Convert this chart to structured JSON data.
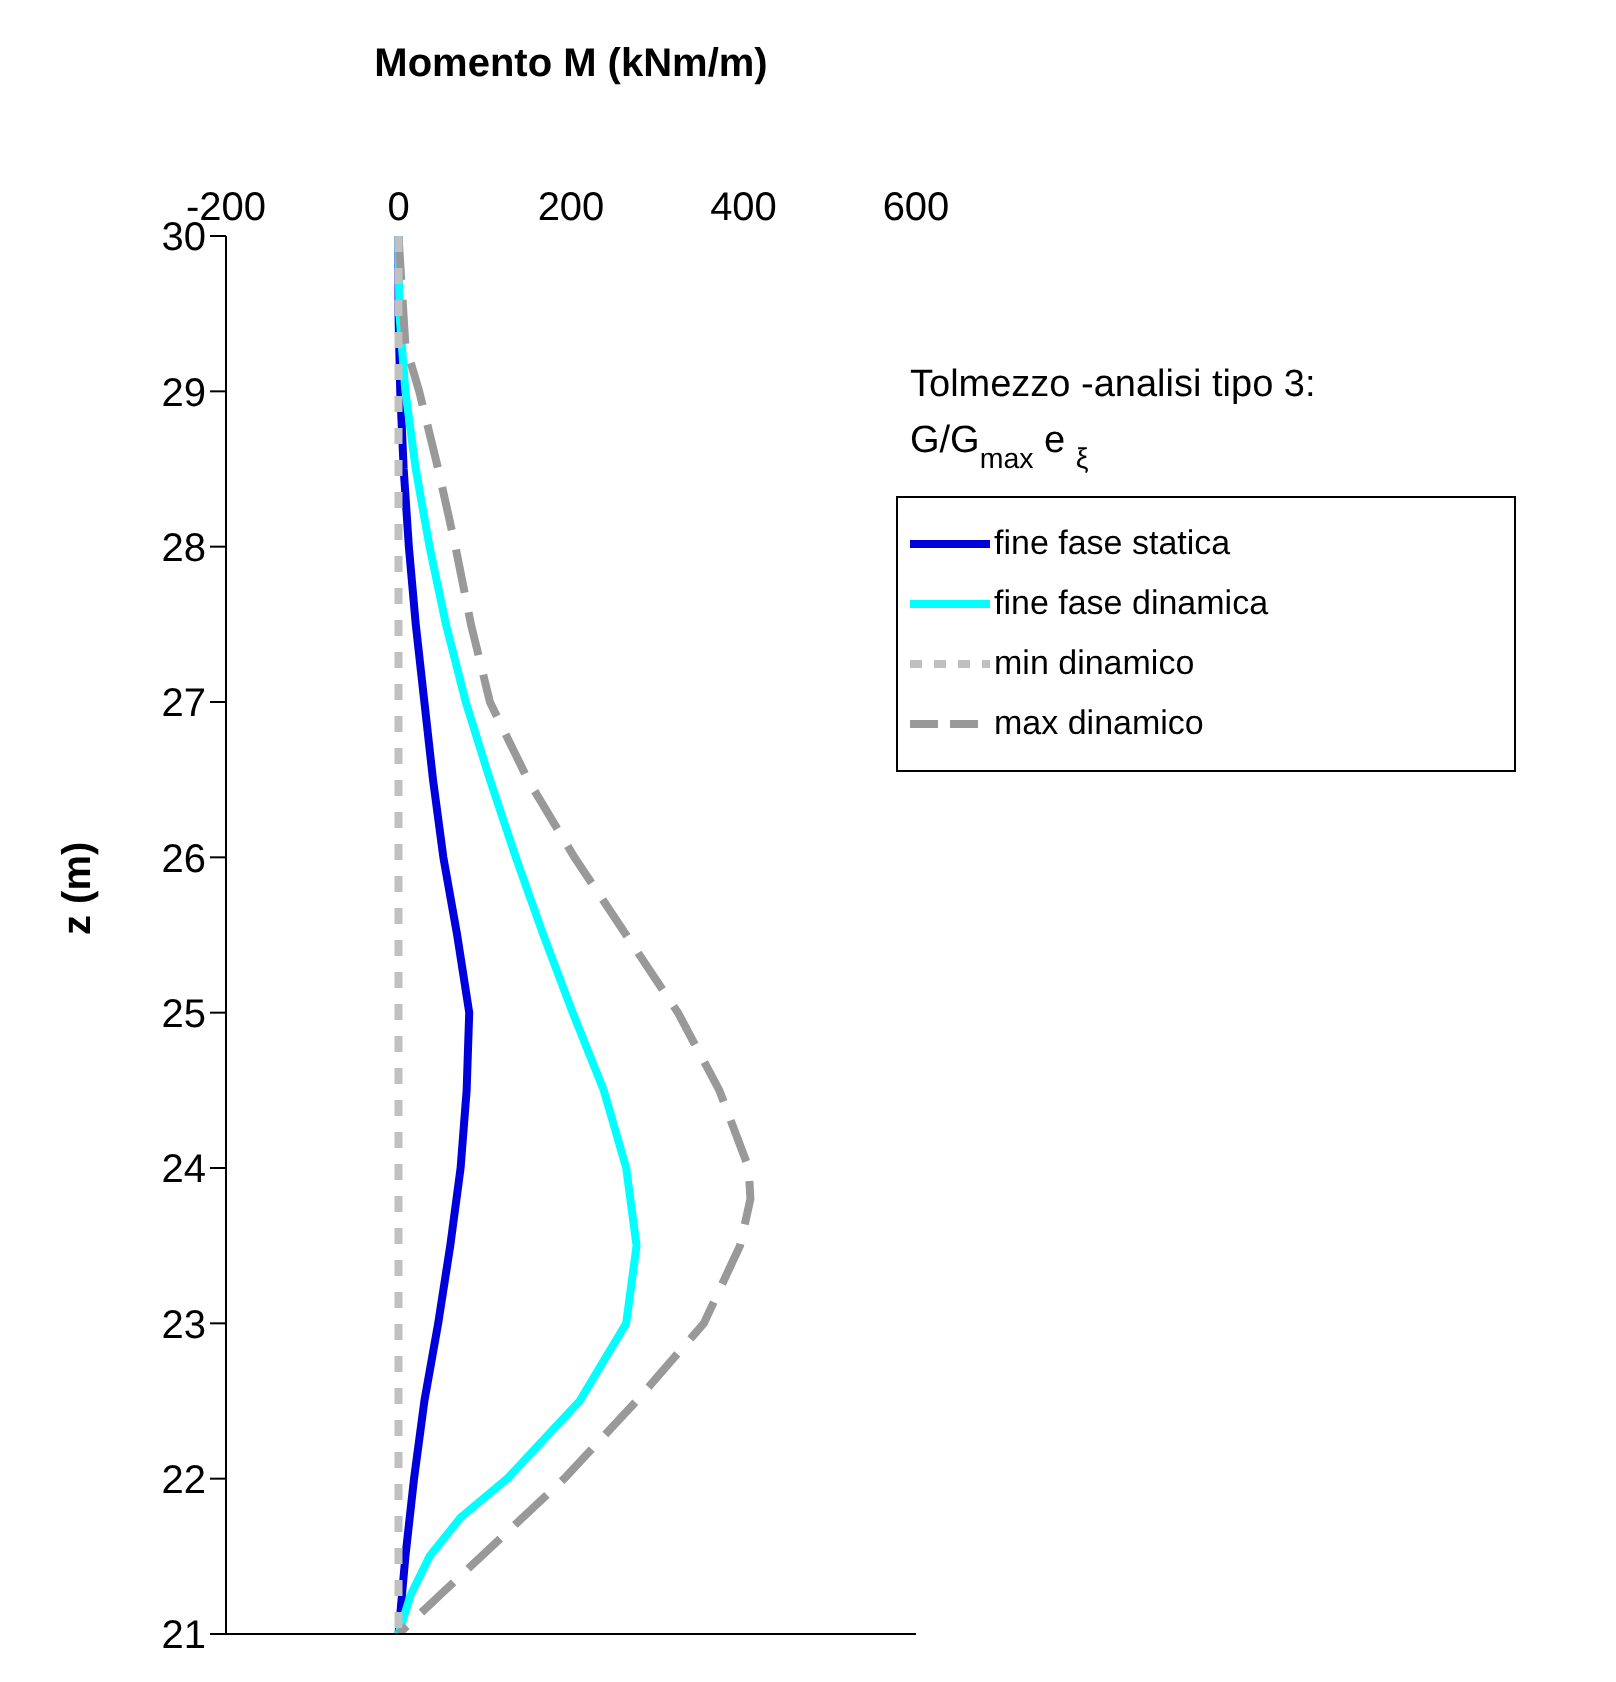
{
  "chart_data": {
    "type": "line",
    "xlabel": "Momento M (kNm/m)",
    "ylabel": "z (m)",
    "xlim": [
      -200,
      600
    ],
    "xticks": [
      -200,
      0,
      200,
      400,
      600
    ],
    "ylim": [
      21,
      30
    ],
    "yticks": [
      21,
      22,
      23,
      24,
      25,
      26,
      27,
      28,
      29,
      30
    ],
    "grid": false,
    "legend": "top right",
    "marker": "none",
    "annotations": [
      "Tolmezzo -analisi tipo 3:",
      "G/G$_{max}$ e $_{ξ}$"
    ],
    "series": [
      {
        "name": "fine fase statica",
        "color": "#0000dd",
        "line_style": "solid",
        "x": [
          0,
          0,
          2,
          6,
          12,
          20,
          30,
          40,
          52,
          68,
          82,
          79,
          72,
          60,
          46,
          30,
          18,
          8,
          0
        ],
        "values": [
          30,
          29.5,
          29,
          28.5,
          28,
          27.5,
          27,
          26.5,
          26,
          25.5,
          25,
          24.5,
          24,
          23.5,
          23,
          22.5,
          22,
          21.5,
          21
        ]
      },
      {
        "name": "fine fase dinamica",
        "color": "#00ffff",
        "line_style": "solid",
        "x": [
          0,
          1,
          8,
          20,
          36,
          55,
          78,
          106,
          136,
          168,
          202,
          238,
          264,
          276,
          264,
          210,
          126,
          72,
          36,
          14,
          0
        ],
        "values": [
          30,
          29.5,
          29,
          28.5,
          28,
          27.5,
          27,
          26.5,
          26,
          25.5,
          25,
          24.5,
          24,
          23.5,
          23,
          22.5,
          22,
          21.75,
          21.5,
          21.25,
          21
        ]
      },
      {
        "name": "min dinamico",
        "color": "#c0c0c0",
        "line_style": "dotted",
        "x": [
          0,
          0,
          0,
          0,
          0,
          0,
          0,
          0,
          0,
          0
        ],
        "values": [
          30,
          29,
          28,
          27,
          26,
          25,
          24,
          23,
          22,
          21
        ]
      },
      {
        "name": "max dinamico",
        "color": "#999999",
        "line_style": "dashed",
        "x": [
          0,
          8,
          24,
          46,
          66,
          84,
          106,
          150,
          204,
          264,
          324,
          372,
          406,
          408,
          396,
          354,
          276,
          192,
          96,
          48,
          0
        ],
        "values": [
          30,
          29.3,
          29,
          28.5,
          28,
          27.5,
          27,
          26.5,
          26,
          25.5,
          25,
          24.5,
          24,
          23.8,
          23.5,
          23,
          22.5,
          22,
          21.5,
          21.25,
          21
        ]
      }
    ]
  }
}
